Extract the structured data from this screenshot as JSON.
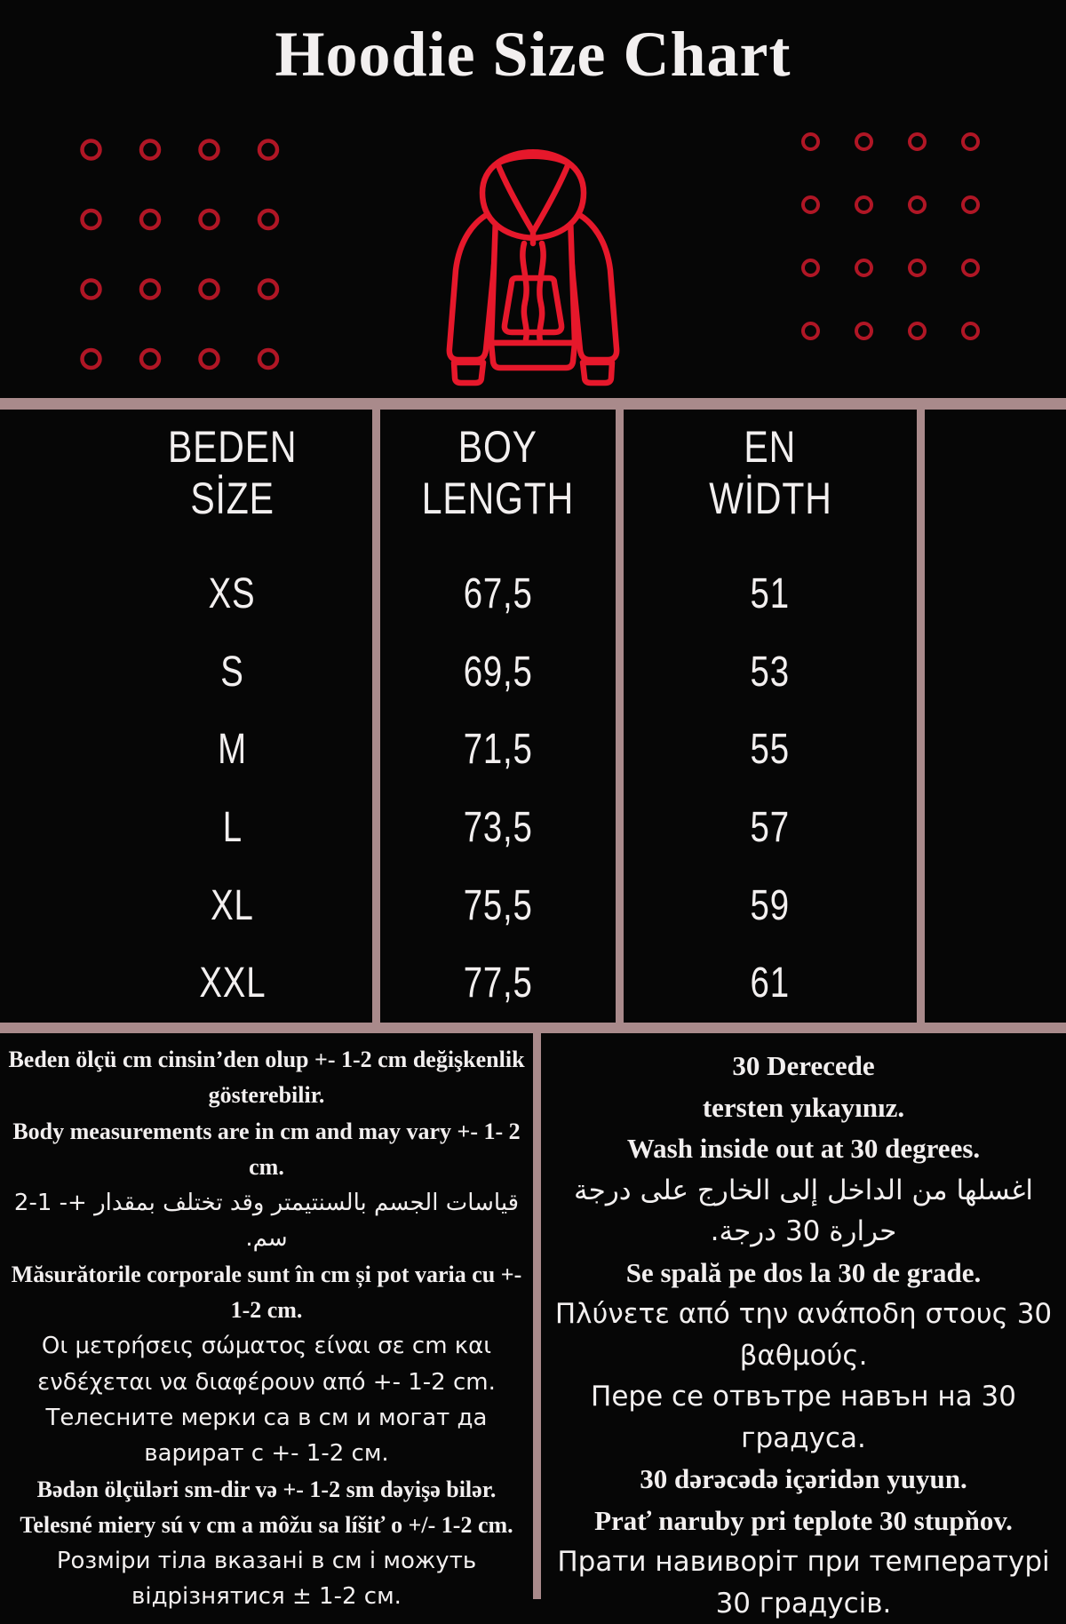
{
  "title": "Hoodie Size Chart",
  "colors": {
    "background": "#060606",
    "border_mauve": "#a98a8b",
    "hoodie_red": "#e6182b",
    "grommet_red": "#b01625",
    "text": "#f2efef"
  },
  "decor": {
    "hoodie_icon": "hoodie-outline",
    "left_dots": {
      "rows": 4,
      "cols": 4,
      "step_x": 66.5,
      "step_y": 78.5,
      "radius": 10,
      "stroke": 4.5
    },
    "right_dots": {
      "rows": 4,
      "cols": 4,
      "step_x": 60,
      "step_y": 71,
      "radius": 8.5,
      "stroke": 4
    }
  },
  "size_table": {
    "columns": [
      [
        "BEDEN",
        "SİZE"
      ],
      [
        "BOY",
        "LENGTH"
      ],
      [
        "EN",
        "WİDTH"
      ]
    ],
    "rows": [
      {
        "size": "XS",
        "length": "67,5",
        "width": "51"
      },
      {
        "size": "S",
        "length": "69,5",
        "width": "53"
      },
      {
        "size": "M",
        "length": "71,5",
        "width": "55"
      },
      {
        "size": "L",
        "length": "73,5",
        "width": "57"
      },
      {
        "size": "XL",
        "length": "75,5",
        "width": "59"
      },
      {
        "size": "XXL",
        "length": "77,5",
        "width": "61"
      }
    ]
  },
  "chart_data": {
    "type": "table",
    "title": "Hoodie Size Chart",
    "columns": [
      "BEDEN SİZE",
      "BOY LENGTH",
      "EN WİDTH"
    ],
    "rows": [
      [
        "XS",
        67.5,
        51
      ],
      [
        "S",
        69.5,
        53
      ],
      [
        "M",
        71.5,
        55
      ],
      [
        "L",
        73.5,
        57
      ],
      [
        "XL",
        75.5,
        59
      ],
      [
        "XXL",
        77.5,
        61
      ]
    ],
    "units": "cm"
  },
  "notes_left": {
    "lines": [
      {
        "style": "serif",
        "text": "Beden ölçü cm cinsin’den olup +- 1-2 cm değişkenlik gösterebilir."
      },
      {
        "style": "serif",
        "text": "Body measurements are in cm and may vary +- 1- 2 cm."
      },
      {
        "style": "arabic",
        "text": "قياسات الجسم بالسنتيمتر وقد تختلف بمقدار +- 1-2 سم."
      },
      {
        "style": "serif",
        "text": "Măsurătorile corporale sunt în cm și pot varia cu +- 1-2 cm."
      },
      {
        "style": "sans",
        "text": "Οι μετρήσεις σώματος είναι σε cm και ενδέχεται να διαφέρουν από +- 1-2 cm."
      },
      {
        "style": "sans",
        "text": "Телесните мерки са в см и могат да варират с +- 1-2 см."
      },
      {
        "style": "serif",
        "text": "Bədən ölçüləri sm-dir və +- 1-2 sm dəyişə bilər."
      },
      {
        "style": "serif",
        "text": "Telesné miery sú v cm a môžu sa líšiť o +/- 1-2 cm."
      },
      {
        "style": "sans",
        "text": "Розміри тіла вказані в см і можуть відрізнятися ± 1-2 см."
      }
    ]
  },
  "notes_right": {
    "lines": [
      {
        "style": "serif",
        "text": "30 Derecede"
      },
      {
        "style": "serif",
        "text": "tersten yıkayınız."
      },
      {
        "style": "serif",
        "text": "Wash inside out at 30 degrees."
      },
      {
        "style": "arabic",
        "text": "اغسلها من الداخل إلى الخارج على درجة حرارة 30 درجة."
      },
      {
        "style": "serif",
        "text": "Se spală pe dos la 30 de grade."
      },
      {
        "style": "sans",
        "text": "Πλύνετε από την ανάποδη στους 30 βαθμούς."
      },
      {
        "style": "sans",
        "text": "Пере се отвътре навън на 30 градуса."
      },
      {
        "style": "serif",
        "text": "30 dərəcədə içəridən yuyun."
      },
      {
        "style": "serif",
        "text": "Prať naruby pri teplote 30 stupňov."
      },
      {
        "style": "sans",
        "text": "Прати навиворіт при температурі 30 градусів."
      }
    ]
  }
}
